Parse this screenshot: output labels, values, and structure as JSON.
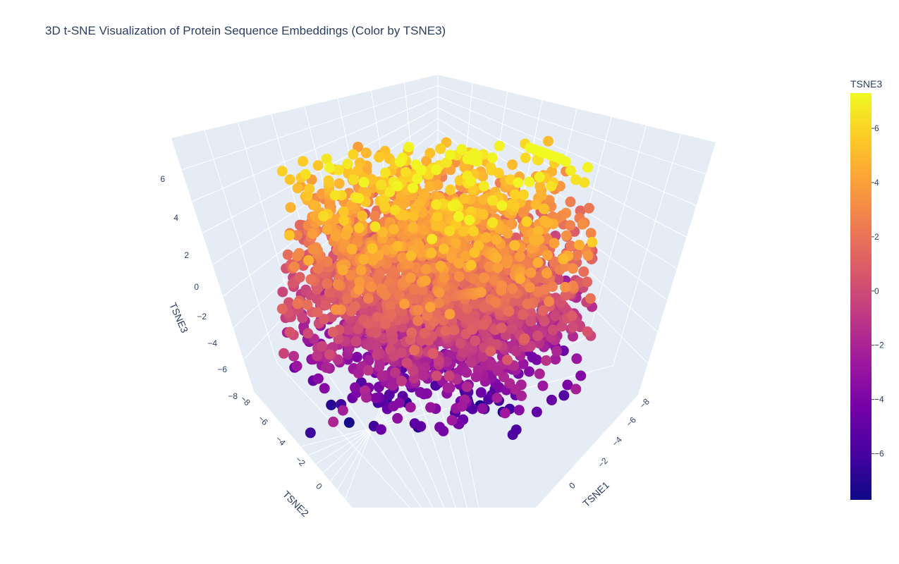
{
  "chart_data": {
    "type": "scatter3d",
    "title": "3D t-SNE Visualization of Protein Sequence Embeddings (Color by TSNE3)",
    "axes": {
      "x": {
        "label": "TSNE1",
        "ticks": [
          "−8",
          "−6",
          "−4",
          "−2",
          "0"
        ],
        "tick_values": [
          -8,
          -6,
          -4,
          -2,
          0
        ]
      },
      "y": {
        "label": "TSNE2",
        "ticks": [
          "−8",
          "−6",
          "−4",
          "−2",
          "0"
        ],
        "tick_values": [
          -8,
          -6,
          -4,
          -2,
          0
        ]
      },
      "z": {
        "label": "TSNE3",
        "ticks": [
          "−8",
          "−6",
          "−4",
          "−2",
          "0",
          "2",
          "4",
          "6"
        ],
        "tick_values": [
          -8,
          -6,
          -4,
          -2,
          0,
          2,
          4,
          6
        ]
      }
    },
    "colorbar": {
      "title": "TSNE3",
      "ticks": [
        "6",
        "4",
        "2",
        "0",
        "−2",
        "−4",
        "−6"
      ],
      "tick_values": [
        6,
        4,
        2,
        0,
        -2,
        -4,
        -6
      ],
      "range": [
        -7.7,
        7.3
      ],
      "colorscale": "plasma"
    },
    "ranges": {
      "x": [
        -9,
        9
      ],
      "y": [
        -9,
        9
      ],
      "z": [
        -7.7,
        7.3
      ]
    },
    "grid": true,
    "point_count_estimate": 3000
  },
  "colors": {
    "scene_bg": "#e5ecf6",
    "grid": "#ffffff",
    "text": "#2a3f5f",
    "plasma": [
      "#0d0887",
      "#46039f",
      "#7201a8",
      "#9c179e",
      "#bd3786",
      "#d8576b",
      "#ed7953",
      "#fb9f3a",
      "#fdca26",
      "#f0f921"
    ]
  }
}
